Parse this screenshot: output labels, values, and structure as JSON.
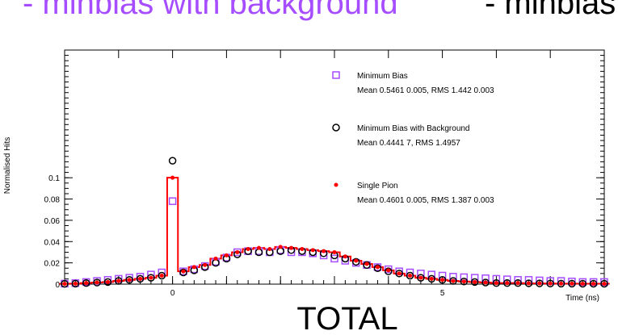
{
  "header": {
    "left_title": "- minbias with background",
    "right_title": "- minbias"
  },
  "chart_data": {
    "type": "scatter",
    "xlabel": "TOTAL",
    "xunit": "Time (ns)",
    "ylabel": "Normalised Hits",
    "xlim": [
      -2,
      8
    ],
    "ylim": [
      0,
      0.22
    ],
    "x_ticks": [
      0,
      5
    ],
    "x_tick_labels": [
      "0",
      "5"
    ],
    "y_ticks": [
      0,
      0.02,
      0.04,
      0.06,
      0.08,
      0.1
    ],
    "y_tick_labels": [
      "0",
      "0.02",
      "0.04",
      "0.06",
      "0.08",
      "0.1"
    ],
    "grid": false,
    "legend_position": "top-right",
    "colors": {
      "minbias": "#a64dff",
      "minbias_bg": "#000000",
      "single": "#ff0000"
    },
    "series": [
      {
        "name": "Minimum Bias",
        "stats": "Mean 0.5461 0.005, RMS 1.442 0.003",
        "marker": "open-square",
        "x": [
          -2.0,
          -1.8,
          -1.6,
          -1.4,
          -1.2,
          -1.0,
          -0.8,
          -0.6,
          -0.4,
          -0.2,
          0.0,
          0.2,
          0.4,
          0.6,
          0.8,
          1.0,
          1.2,
          1.4,
          1.6,
          1.8,
          2.0,
          2.2,
          2.4,
          2.6,
          2.8,
          3.0,
          3.2,
          3.4,
          3.6,
          3.8,
          4.0,
          4.2,
          4.4,
          4.6,
          4.8,
          5.0,
          5.2,
          5.4,
          5.6,
          5.8,
          6.0,
          6.2,
          6.4,
          6.6,
          6.8,
          7.0,
          7.2,
          7.4,
          7.6,
          7.8,
          8.0
        ],
        "y": [
          0.0005,
          0.001,
          0.002,
          0.003,
          0.004,
          0.005,
          0.006,
          0.007,
          0.009,
          0.011,
          0.078,
          0.012,
          0.014,
          0.017,
          0.021,
          0.025,
          0.03,
          0.031,
          0.031,
          0.03,
          0.032,
          0.03,
          0.03,
          0.029,
          0.027,
          0.024,
          0.022,
          0.02,
          0.018,
          0.016,
          0.014,
          0.012,
          0.011,
          0.01,
          0.009,
          0.008,
          0.007,
          0.0065,
          0.006,
          0.0055,
          0.005,
          0.0045,
          0.004,
          0.004,
          0.0035,
          0.003,
          0.003,
          0.0025,
          0.002,
          0.002,
          0.002
        ]
      },
      {
        "name": "Minimum Bias with Background",
        "stats": "Mean 0.4441 7, RMS 1.4957",
        "marker": "open-circle",
        "x": [
          -2.0,
          -1.8,
          -1.6,
          -1.4,
          -1.2,
          -1.0,
          -0.8,
          -0.6,
          -0.4,
          -0.2,
          0.0,
          0.2,
          0.4,
          0.6,
          0.8,
          1.0,
          1.2,
          1.4,
          1.6,
          1.8,
          2.0,
          2.2,
          2.4,
          2.6,
          2.8,
          3.0,
          3.2,
          3.4,
          3.6,
          3.8,
          4.0,
          4.2,
          4.4,
          4.6,
          4.8,
          5.0,
          5.2,
          5.4,
          5.6,
          5.8,
          6.0,
          6.2,
          6.4,
          6.6,
          6.8,
          7.0,
          7.2,
          7.4,
          7.6,
          7.8,
          8.0
        ],
        "y": [
          0.0003,
          0.0005,
          0.001,
          0.0015,
          0.002,
          0.003,
          0.004,
          0.005,
          0.006,
          0.008,
          0.116,
          0.011,
          0.013,
          0.016,
          0.02,
          0.024,
          0.028,
          0.031,
          0.03,
          0.03,
          0.031,
          0.032,
          0.031,
          0.03,
          0.029,
          0.027,
          0.024,
          0.021,
          0.018,
          0.015,
          0.012,
          0.01,
          0.008,
          0.006,
          0.005,
          0.004,
          0.003,
          0.0025,
          0.002,
          0.0015,
          0.001,
          0.001,
          0.001,
          0.0008,
          0.0007,
          0.0006,
          0.0005,
          0.0005,
          0.0004,
          0.0004,
          0.0004
        ]
      },
      {
        "name": "Single Pion",
        "stats": "Mean 0.4601 0.005, RMS 1.387 0.003",
        "marker": "filled-circle",
        "x": [
          -2.0,
          -1.8,
          -1.6,
          -1.4,
          -1.2,
          -1.0,
          -0.8,
          -0.6,
          -0.4,
          -0.2,
          0.0,
          0.2,
          0.4,
          0.6,
          0.8,
          1.0,
          1.2,
          1.4,
          1.6,
          1.8,
          2.0,
          2.2,
          2.4,
          2.6,
          2.8,
          3.0,
          3.2,
          3.4,
          3.6,
          3.8,
          4.0,
          4.2,
          4.4,
          4.6,
          4.8,
          5.0,
          5.2,
          5.4,
          5.6,
          5.8,
          6.0,
          6.2,
          6.4,
          6.6,
          6.8,
          7.0,
          7.2,
          7.4,
          7.6,
          7.8,
          8.0
        ],
        "y": [
          0.0003,
          0.0005,
          0.001,
          0.0015,
          0.002,
          0.003,
          0.004,
          0.005,
          0.006,
          0.008,
          0.1,
          0.012,
          0.016,
          0.018,
          0.024,
          0.027,
          0.03,
          0.033,
          0.034,
          0.033,
          0.035,
          0.034,
          0.033,
          0.032,
          0.031,
          0.03,
          0.026,
          0.022,
          0.019,
          0.016,
          0.013,
          0.01,
          0.008,
          0.006,
          0.005,
          0.004,
          0.003,
          0.0025,
          0.002,
          0.0015,
          0.001,
          0.001,
          0.001,
          0.0008,
          0.0007,
          0.0006,
          0.0005,
          0.0005,
          0.0004,
          0.0004,
          0.0004
        ]
      }
    ]
  }
}
